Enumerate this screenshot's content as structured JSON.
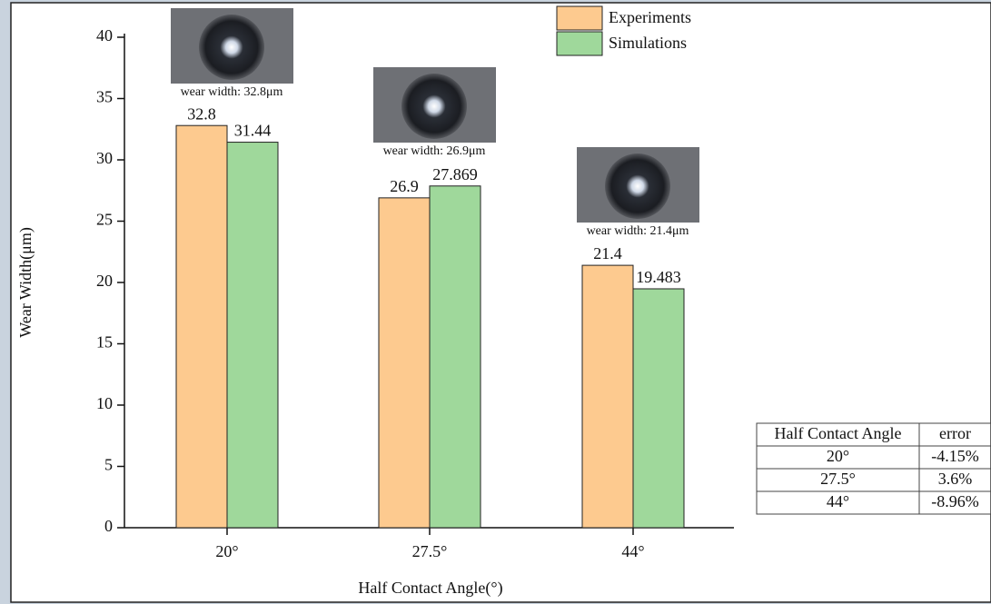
{
  "chart_data": {
    "type": "bar",
    "x_label": "Half Contact Angle(°)",
    "y_label": "Wear Width(μm)",
    "categories": [
      "20°",
      "27.5°",
      "44°"
    ],
    "series": [
      {
        "name": "Experiments",
        "color": "#fdca8f",
        "values": [
          32.8,
          26.9,
          21.4
        ]
      },
      {
        "name": "Simulations",
        "color": "#9fd89b",
        "values": [
          31.44,
          27.869,
          19.483
        ]
      }
    ],
    "annotations": [
      "wear width: 32.8μm",
      "wear width: 26.9μm",
      "wear width: 21.4μm"
    ],
    "ylim": [
      0,
      40
    ],
    "yticks": [
      0,
      5,
      10,
      15,
      20,
      25,
      30,
      35,
      40
    ],
    "grid": false,
    "legend": "upper center"
  },
  "table": {
    "header": [
      "Half Contact Angle",
      "error"
    ],
    "rows": [
      [
        "20°",
        "-4.15%"
      ],
      [
        "27.5°",
        "3.6%"
      ],
      [
        "44°",
        "-8.96%"
      ]
    ]
  }
}
